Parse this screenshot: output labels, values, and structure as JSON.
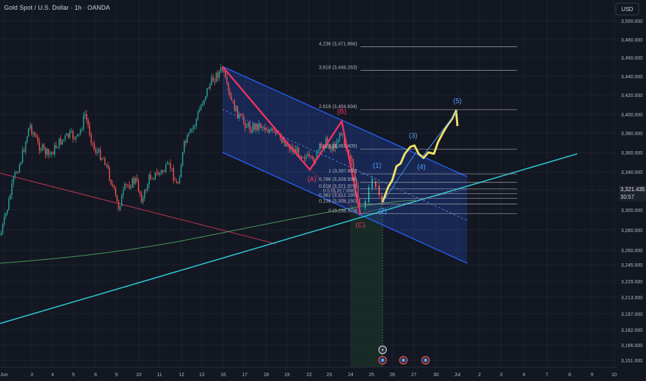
{
  "header": {
    "title": "Gold Spot / U.S. Dollar · 1h · OANDA",
    "currency": "USD"
  },
  "current": {
    "price": "3,321.435",
    "countdown": "30:57"
  },
  "colors": {
    "bg": "#131722",
    "grid": "#1e222d",
    "up": "#26a69a",
    "down": "#ef5350",
    "channel": "#2962ff",
    "trendline": "#2bc7d4",
    "abc": "#f0325e",
    "impulse": "#f3e46b",
    "wave_label": "#4da3ff",
    "fib": "#b2b5be",
    "ma": "#4c9c5a",
    "redline": "#c2394e"
  },
  "chart_data": {
    "type": "candlestick",
    "symbol": "XAUUSD",
    "timeframe": "1h",
    "ylim": [
      3145,
      3510
    ],
    "y_ticks": [
      "3,500.000",
      "3,480.000",
      "3,460.000",
      "3,440.000",
      "3,420.000",
      "3,400.000",
      "3,380.000",
      "3,360.000",
      "3,340.000",
      "3,300.000",
      "3,280.000",
      "3,260.000",
      "3,245.000",
      "3,229.000",
      "3,213.000",
      "3,197.000",
      "3,182.000",
      "3,166.000",
      "3,151.000"
    ],
    "y_tick_values": [
      3500,
      3480,
      3460,
      3440,
      3420,
      3400,
      3380,
      3360,
      3340,
      3300,
      3280,
      3260,
      3245,
      3229,
      3213,
      3197,
      3182,
      3166,
      3151
    ],
    "x_ticks": [
      "Jun",
      "3",
      "4",
      "5",
      "6",
      "9",
      "10",
      "11",
      "12",
      "13",
      "16",
      "17",
      "18",
      "19",
      "22",
      "23",
      "24",
      "25",
      "26",
      "27",
      "30",
      "Jul",
      "2",
      "3",
      "4",
      "7",
      "8",
      "9",
      "10"
    ],
    "fib_levels": [
      {
        "label": "0 (3,296.373)",
        "value": 3296.373
      },
      {
        "label": "0.236 (3,306.150)",
        "value": 3306.15
      },
      {
        "label": "0.382 (3,312.199)",
        "value": 3312.199
      },
      {
        "label": "0.5 (3,317.088)",
        "value": 3317.088
      },
      {
        "label": "0.618 (3,321.978)",
        "value": 3321.978
      },
      {
        "label": "0.786 (3,328.938)",
        "value": 3328.938
      },
      {
        "label": "1 (3,337.802)",
        "value": 3337.802
      },
      {
        "label": "1.618 (3,363.405)",
        "value": 3363.405
      },
      {
        "label": "2.618 (3,404.834)",
        "value": 3404.834
      },
      {
        "label": "3.618 (3,446.263)",
        "value": 3446.263
      },
      {
        "label": "4.236 (3,471.866)",
        "value": 3471.866
      }
    ],
    "corrective_waves": [
      {
        "label": "(A)",
        "price": 3342
      },
      {
        "label": "(B)",
        "price": 3393
      },
      {
        "label": "(C)",
        "price": 3296
      }
    ],
    "impulse_waves": [
      {
        "label": "(1)",
        "price": 3335
      },
      {
        "label": "(2)",
        "price": 3312
      },
      {
        "label": "(3)",
        "price": 3370
      },
      {
        "label": "(4)",
        "price": 3353
      },
      {
        "label": "(5)",
        "price": 3405
      }
    ],
    "legend": "none",
    "grid": true
  }
}
